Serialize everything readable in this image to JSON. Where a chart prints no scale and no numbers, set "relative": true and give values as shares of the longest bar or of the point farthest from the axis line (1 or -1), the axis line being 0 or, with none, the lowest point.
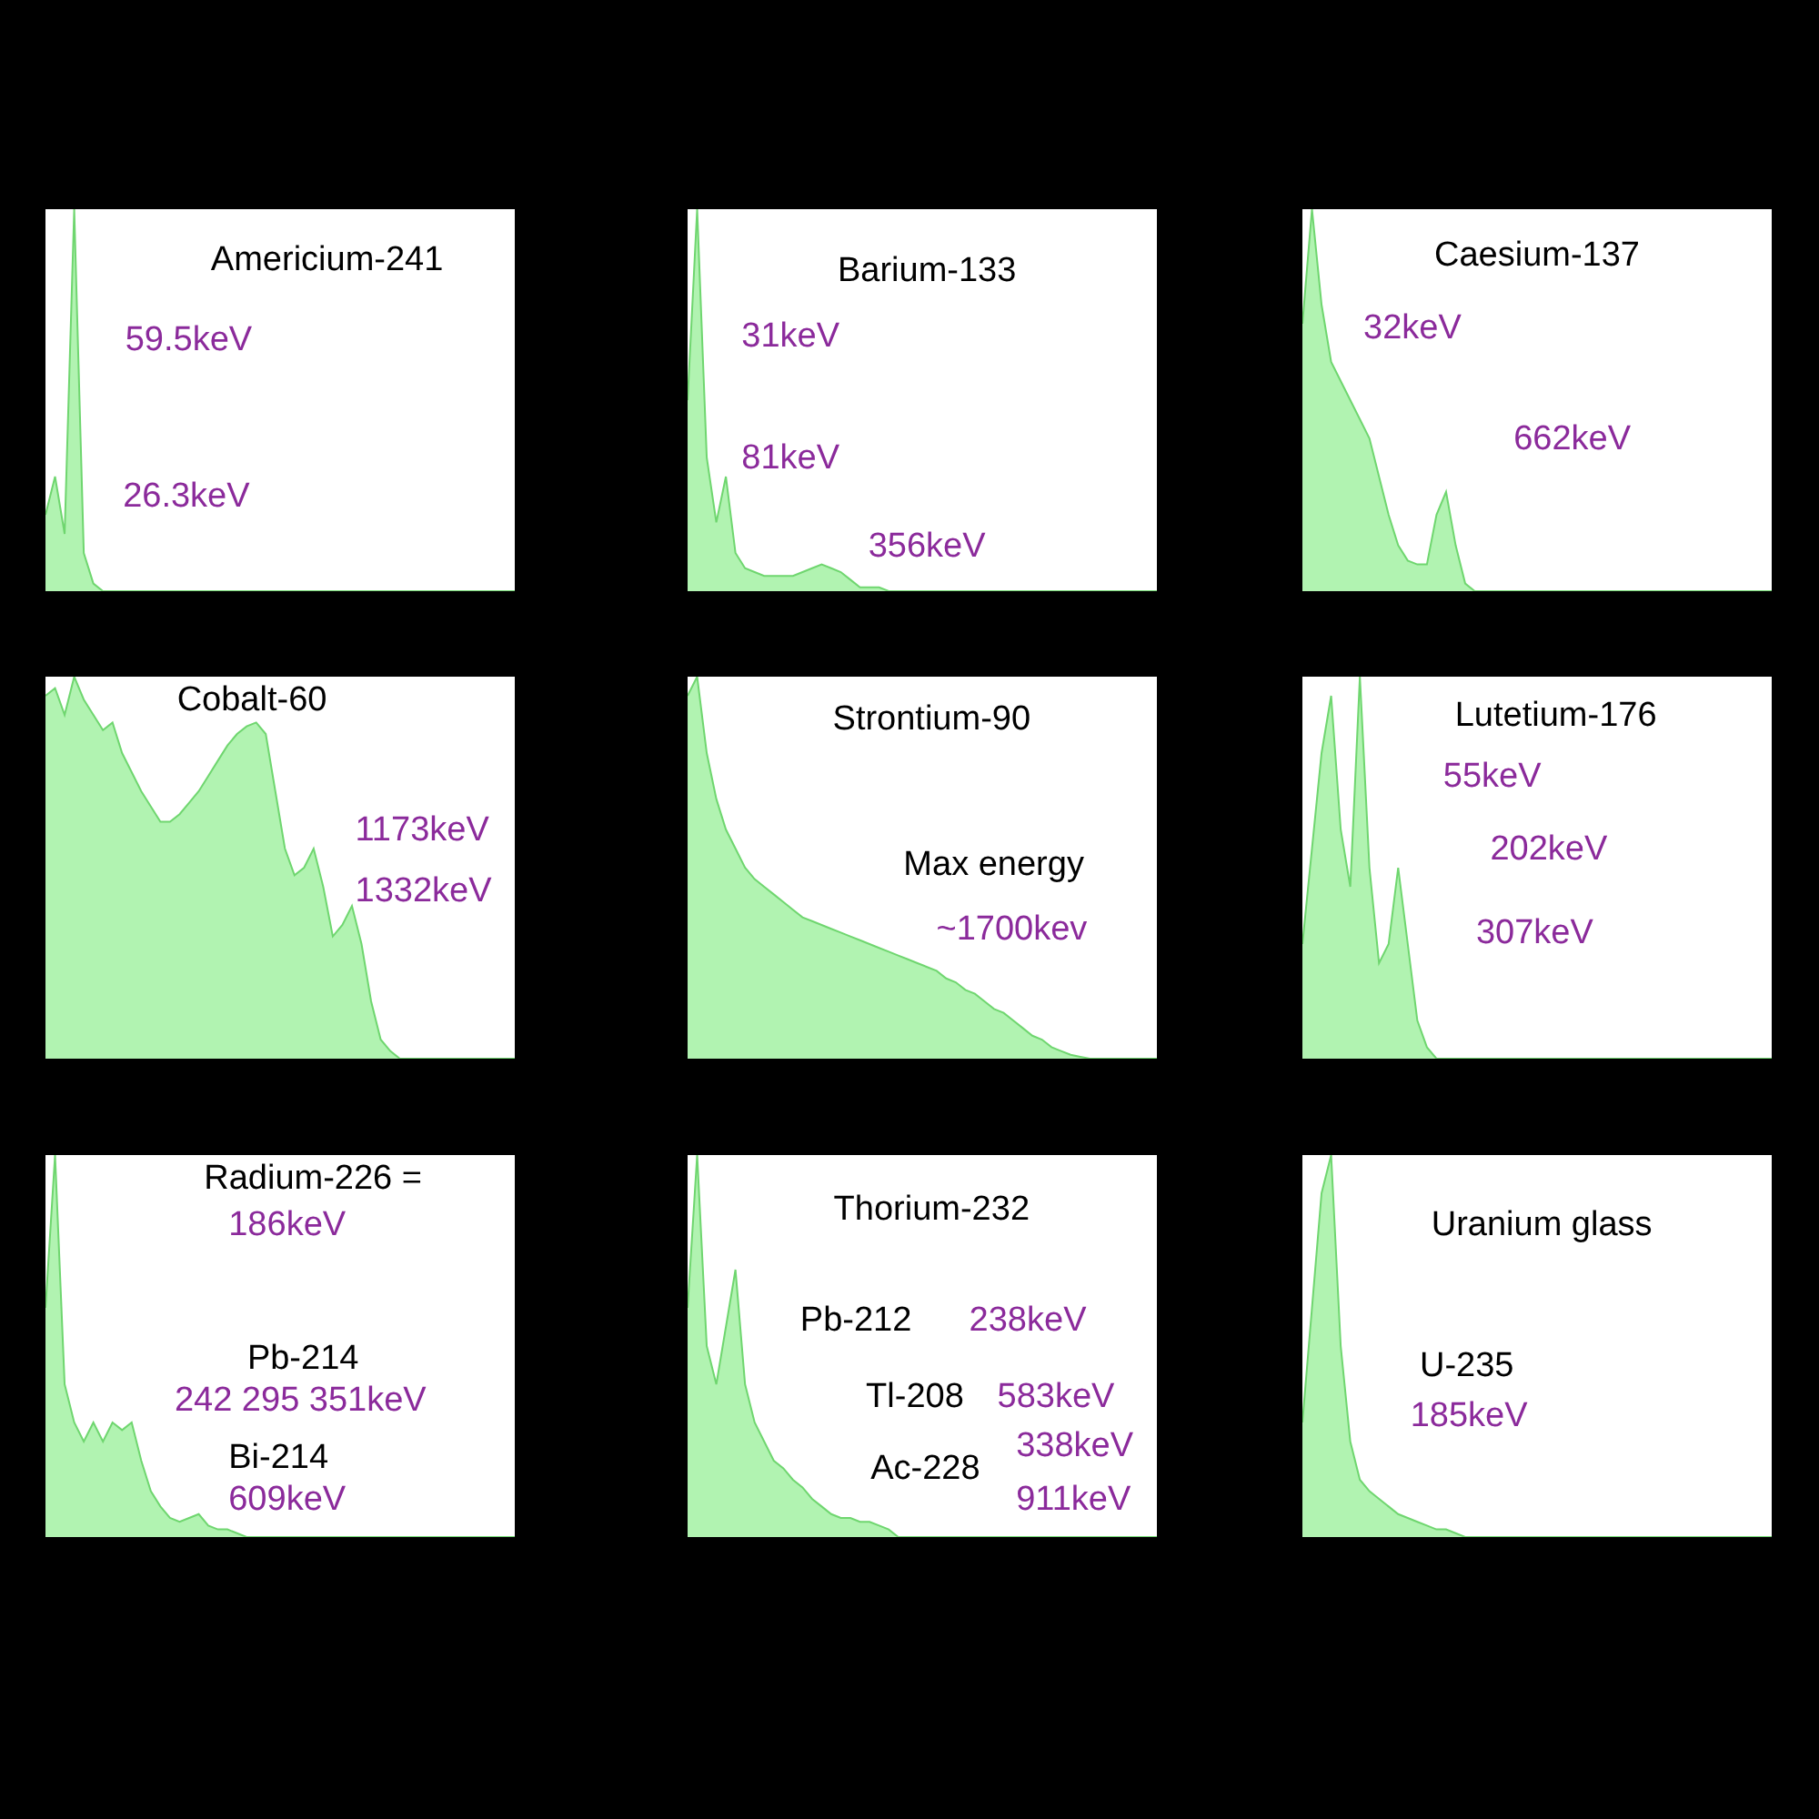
{
  "chart_data": [
    {
      "type": "area",
      "title": "Americium-241",
      "relative": true,
      "categories": [
        null,
        null,
        null,
        null,
        null,
        null,
        null,
        null,
        null,
        null,
        null,
        null,
        null,
        null,
        null,
        null,
        null,
        null,
        null,
        null,
        null,
        null,
        null,
        null,
        null,
        null,
        null,
        null,
        null,
        null,
        null,
        null,
        null,
        null,
        null,
        null,
        null,
        null,
        null,
        null,
        null,
        null,
        null,
        null,
        null,
        null,
        null,
        null,
        null,
        null
      ],
      "series": [
        {
          "color": "#90ee90",
          "values": [
            0.2,
            0.3,
            0.15,
            1.0,
            0.1,
            0.02,
            0,
            0,
            0,
            0,
            0,
            0,
            0,
            0,
            0,
            0,
            0,
            0,
            0,
            0,
            0,
            0,
            0,
            0,
            0,
            0,
            0,
            0,
            0,
            0,
            0,
            0,
            0,
            0,
            0,
            0,
            0,
            0,
            0,
            0,
            0,
            0,
            0,
            0,
            0,
            0,
            0,
            0,
            0,
            0
          ]
        }
      ],
      "annotations": [
        "59.5keV",
        "26.3keV"
      ]
    },
    {
      "type": "area",
      "title": "Barium-133",
      "relative": true,
      "categories": [
        null,
        null,
        null,
        null,
        null,
        null,
        null,
        null,
        null,
        null,
        null,
        null,
        null,
        null,
        null,
        null,
        null,
        null,
        null,
        null,
        null,
        null,
        null,
        null,
        null,
        null,
        null,
        null,
        null,
        null,
        null,
        null,
        null,
        null,
        null,
        null,
        null,
        null,
        null,
        null,
        null,
        null,
        null,
        null,
        null,
        null,
        null,
        null,
        null,
        null
      ],
      "series": [
        {
          "color": "#90ee90",
          "values": [
            0.5,
            1.0,
            0.35,
            0.18,
            0.3,
            0.1,
            0.06,
            0.05,
            0.04,
            0.04,
            0.04,
            0.04,
            0.05,
            0.06,
            0.07,
            0.06,
            0.05,
            0.03,
            0.01,
            0.01,
            0.01,
            0,
            0,
            0,
            0,
            0,
            0,
            0,
            0,
            0,
            0,
            0,
            0,
            0,
            0,
            0,
            0,
            0,
            0,
            0,
            0,
            0,
            0,
            0,
            0,
            0,
            0,
            0,
            0,
            0
          ]
        }
      ],
      "annotations": [
        "31keV",
        "81keV",
        "356keV"
      ]
    },
    {
      "type": "area",
      "title": "Caesium-137",
      "relative": true,
      "categories": [
        null,
        null,
        null,
        null,
        null,
        null,
        null,
        null,
        null,
        null,
        null,
        null,
        null,
        null,
        null,
        null,
        null,
        null,
        null,
        null,
        null,
        null,
        null,
        null,
        null,
        null,
        null,
        null,
        null,
        null,
        null,
        null,
        null,
        null,
        null,
        null,
        null,
        null,
        null,
        null,
        null,
        null,
        null,
        null,
        null,
        null,
        null,
        null,
        null,
        null
      ],
      "series": [
        {
          "color": "#90ee90",
          "values": [
            0.7,
            1.0,
            0.75,
            0.6,
            0.55,
            0.5,
            0.45,
            0.4,
            0.3,
            0.2,
            0.12,
            0.08,
            0.07,
            0.07,
            0.2,
            0.26,
            0.12,
            0.02,
            0,
            0,
            0,
            0,
            0,
            0,
            0,
            0,
            0,
            0,
            0,
            0,
            0,
            0,
            0,
            0,
            0,
            0,
            0,
            0,
            0,
            0,
            0,
            0,
            0,
            0,
            0,
            0,
            0,
            0,
            0,
            0
          ]
        }
      ],
      "annotations": [
        "32keV",
        "662keV"
      ]
    },
    {
      "type": "area",
      "title": "Cobalt-60",
      "relative": true,
      "categories": [
        null,
        null,
        null,
        null,
        null,
        null,
        null,
        null,
        null,
        null,
        null,
        null,
        null,
        null,
        null,
        null,
        null,
        null,
        null,
        null,
        null,
        null,
        null,
        null,
        null,
        null,
        null,
        null,
        null,
        null,
        null,
        null,
        null,
        null,
        null,
        null,
        null,
        null,
        null,
        null,
        null,
        null,
        null,
        null,
        null,
        null,
        null,
        null,
        null,
        null
      ],
      "series": [
        {
          "color": "#90ee90",
          "values": [
            0.95,
            0.97,
            0.9,
            1.0,
            0.94,
            0.9,
            0.86,
            0.88,
            0.8,
            0.75,
            0.7,
            0.66,
            0.62,
            0.62,
            0.64,
            0.67,
            0.7,
            0.74,
            0.78,
            0.82,
            0.85,
            0.87,
            0.88,
            0.85,
            0.7,
            0.55,
            0.48,
            0.5,
            0.55,
            0.45,
            0.32,
            0.35,
            0.4,
            0.3,
            0.15,
            0.05,
            0.02,
            0,
            0,
            0,
            0,
            0,
            0,
            0,
            0,
            0,
            0,
            0,
            0,
            0
          ]
        }
      ],
      "annotations": [
        "1173keV",
        "1332keV"
      ]
    },
    {
      "type": "area",
      "title": "Strontium-90",
      "relative": true,
      "categories": [
        null,
        null,
        null,
        null,
        null,
        null,
        null,
        null,
        null,
        null,
        null,
        null,
        null,
        null,
        null,
        null,
        null,
        null,
        null,
        null,
        null,
        null,
        null,
        null,
        null,
        null,
        null,
        null,
        null,
        null,
        null,
        null,
        null,
        null,
        null,
        null,
        null,
        null,
        null,
        null,
        null,
        null,
        null,
        null,
        null,
        null,
        null,
        null,
        null,
        null
      ],
      "series": [
        {
          "color": "#90ee90",
          "values": [
            0.95,
            1.0,
            0.8,
            0.68,
            0.6,
            0.55,
            0.5,
            0.47,
            0.45,
            0.43,
            0.41,
            0.39,
            0.37,
            0.36,
            0.35,
            0.34,
            0.33,
            0.32,
            0.31,
            0.3,
            0.29,
            0.28,
            0.27,
            0.26,
            0.25,
            0.24,
            0.23,
            0.21,
            0.2,
            0.18,
            0.17,
            0.15,
            0.13,
            0.12,
            0.1,
            0.08,
            0.06,
            0.05,
            0.03,
            0.02,
            0.01,
            0.005,
            0,
            0,
            0,
            0,
            0,
            0,
            0,
            0
          ]
        }
      ],
      "annotations": [
        "Max energy",
        "~1700kev"
      ]
    },
    {
      "type": "area",
      "title": "Lutetium-176",
      "relative": true,
      "categories": [
        null,
        null,
        null,
        null,
        null,
        null,
        null,
        null,
        null,
        null,
        null,
        null,
        null,
        null,
        null,
        null,
        null,
        null,
        null,
        null,
        null,
        null,
        null,
        null,
        null,
        null,
        null,
        null,
        null,
        null,
        null,
        null,
        null,
        null,
        null,
        null,
        null,
        null,
        null,
        null,
        null,
        null,
        null,
        null,
        null,
        null,
        null,
        null,
        null,
        null
      ],
      "series": [
        {
          "color": "#90ee90",
          "values": [
            0.3,
            0.55,
            0.8,
            0.95,
            0.6,
            0.45,
            1.0,
            0.5,
            0.25,
            0.3,
            0.5,
            0.3,
            0.1,
            0.03,
            0,
            0,
            0,
            0,
            0,
            0,
            0,
            0,
            0,
            0,
            0,
            0,
            0,
            0,
            0,
            0,
            0,
            0,
            0,
            0,
            0,
            0,
            0,
            0,
            0,
            0,
            0,
            0,
            0,
            0,
            0,
            0,
            0,
            0,
            0,
            0
          ]
        }
      ],
      "annotations": [
        "55keV",
        "202keV",
        "307keV"
      ]
    },
    {
      "type": "area",
      "title": "Radium-226 =",
      "relative": true,
      "categories": [
        null,
        null,
        null,
        null,
        null,
        null,
        null,
        null,
        null,
        null,
        null,
        null,
        null,
        null,
        null,
        null,
        null,
        null,
        null,
        null,
        null,
        null,
        null,
        null,
        null,
        null,
        null,
        null,
        null,
        null,
        null,
        null,
        null,
        null,
        null,
        null,
        null,
        null,
        null,
        null,
        null,
        null,
        null,
        null,
        null,
        null,
        null,
        null,
        null,
        null
      ],
      "series": [
        {
          "color": "#90ee90",
          "values": [
            0.6,
            1.0,
            0.4,
            0.3,
            0.25,
            0.3,
            0.25,
            0.3,
            0.28,
            0.3,
            0.2,
            0.12,
            0.08,
            0.05,
            0.04,
            0.05,
            0.06,
            0.03,
            0.02,
            0.02,
            0.01,
            0,
            0,
            0,
            0,
            0,
            0,
            0,
            0,
            0,
            0,
            0,
            0,
            0,
            0,
            0,
            0,
            0,
            0,
            0,
            0,
            0,
            0,
            0,
            0,
            0,
            0,
            0,
            0,
            0
          ]
        }
      ],
      "annotations": [
        "186keV",
        "Pb-214",
        "242 295 351keV",
        "Bi-214",
        "609keV"
      ]
    },
    {
      "type": "area",
      "title": "Thorium-232",
      "relative": true,
      "categories": [
        null,
        null,
        null,
        null,
        null,
        null,
        null,
        null,
        null,
        null,
        null,
        null,
        null,
        null,
        null,
        null,
        null,
        null,
        null,
        null,
        null,
        null,
        null,
        null,
        null,
        null,
        null,
        null,
        null,
        null,
        null,
        null,
        null,
        null,
        null,
        null,
        null,
        null,
        null,
        null,
        null,
        null,
        null,
        null,
        null,
        null,
        null,
        null,
        null,
        null
      ],
      "series": [
        {
          "color": "#90ee90",
          "values": [
            0.6,
            1.0,
            0.5,
            0.4,
            0.55,
            0.7,
            0.4,
            0.3,
            0.25,
            0.2,
            0.18,
            0.15,
            0.13,
            0.1,
            0.08,
            0.06,
            0.05,
            0.05,
            0.04,
            0.04,
            0.03,
            0.02,
            0,
            0,
            0,
            0,
            0,
            0,
            0,
            0,
            0,
            0,
            0,
            0,
            0,
            0,
            0,
            0,
            0,
            0,
            0,
            0,
            0,
            0,
            0,
            0,
            0,
            0,
            0,
            0
          ]
        }
      ],
      "annotations": [
        "Pb-212",
        "238keV",
        "Tl-208",
        "583keV",
        "Ac-228",
        "338keV",
        "911keV"
      ]
    },
    {
      "type": "area",
      "title": "Uranium glass",
      "relative": true,
      "categories": [
        null,
        null,
        null,
        null,
        null,
        null,
        null,
        null,
        null,
        null,
        null,
        null,
        null,
        null,
        null,
        null,
        null,
        null,
        null,
        null,
        null,
        null,
        null,
        null,
        null,
        null,
        null,
        null,
        null,
        null,
        null,
        null,
        null,
        null,
        null,
        null,
        null,
        null,
        null,
        null,
        null,
        null,
        null,
        null,
        null,
        null,
        null,
        null,
        null,
        null
      ],
      "series": [
        {
          "color": "#90ee90",
          "values": [
            0.3,
            0.6,
            0.9,
            1.0,
            0.5,
            0.25,
            0.15,
            0.12,
            0.1,
            0.08,
            0.06,
            0.05,
            0.04,
            0.03,
            0.02,
            0.02,
            0.01,
            0,
            0,
            0,
            0,
            0,
            0,
            0,
            0,
            0,
            0,
            0,
            0,
            0,
            0,
            0,
            0,
            0,
            0,
            0,
            0,
            0,
            0,
            0,
            0,
            0,
            0,
            0,
            0,
            0,
            0,
            0,
            0,
            0
          ]
        }
      ],
      "annotations": [
        "U-235",
        "185keV"
      ]
    }
  ]
}
